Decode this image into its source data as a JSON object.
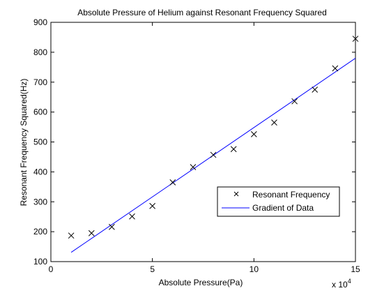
{
  "chart_data": {
    "type": "scatter",
    "title": "Absolute Pressure of Helium against Resonant Frequency Squared",
    "xlabel": "Absolute Pressure(Pa)",
    "ylabel": "Resonant Frequency Squared(Hz)",
    "x_multiplier_label": "x 10",
    "x_multiplier_exponent": "4",
    "xlim": [
      0,
      15
    ],
    "ylim": [
      100,
      900
    ],
    "x_ticks": [
      "0",
      "5",
      "10",
      "15"
    ],
    "y_ticks": [
      "100",
      "200",
      "300",
      "400",
      "500",
      "600",
      "700",
      "800",
      "900"
    ],
    "grid": false,
    "legend_position": "lower-right",
    "series": [
      {
        "name": "Resonant Frequency",
        "kind": "markers",
        "marker": "x",
        "color": "#000000",
        "x": [
          1,
          2,
          3,
          4,
          5,
          6,
          7,
          8,
          9,
          10,
          11,
          12,
          13,
          14,
          15
        ],
        "y": [
          187,
          195,
          216,
          251,
          286,
          365,
          416,
          457,
          476,
          526,
          565,
          636,
          675,
          746,
          845
        ]
      },
      {
        "name": "Gradient of Data",
        "kind": "line",
        "color": "#0000ff",
        "x": [
          1,
          15
        ],
        "y": [
          131,
          780
        ]
      }
    ]
  }
}
